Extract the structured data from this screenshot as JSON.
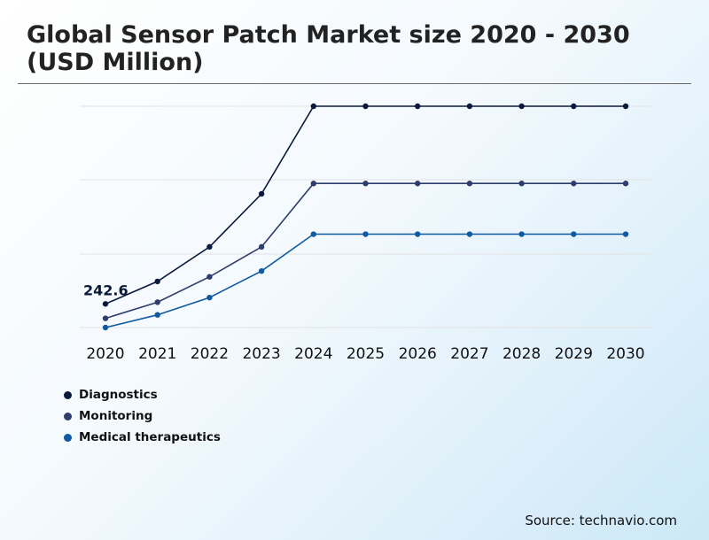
{
  "title": "Global Sensor Patch Market size 2020 - 2030 (USD Million)",
  "source": "Source: technavio.com",
  "colors": {
    "diagnostics": "#0a1a3a",
    "monitoring": "#2e3d6b",
    "medical": "#0f5aa0",
    "grid": "#e2e2e2"
  },
  "chart_data": {
    "type": "line",
    "title": "Global Sensor Patch Market size 2020 - 2030 (USD Million)",
    "xlabel": "",
    "ylabel": "",
    "x": [
      "2020",
      "2021",
      "2022",
      "2023",
      "2024",
      "2025",
      "2026",
      "2027",
      "2028",
      "2029",
      "2030"
    ],
    "ylim": [
      140,
      1100
    ],
    "grid": true,
    "legend": "bottom-left",
    "series": [
      {
        "name": "Diagnostics",
        "values": [
          242.6,
          340,
          490,
          720,
          1100,
          1100,
          1100,
          1100,
          1100,
          1100,
          1100
        ]
      },
      {
        "name": "Monitoring",
        "values": [
          180,
          250,
          360,
          490,
          765,
          765,
          765,
          765,
          765,
          765,
          765
        ]
      },
      {
        "name": "Medical therapeutics",
        "values": [
          140,
          195,
          270,
          385,
          545,
          545,
          545,
          545,
          545,
          545,
          545
        ]
      }
    ],
    "annotations": [
      {
        "series": "Diagnostics",
        "x": "2020",
        "label": "242.6"
      }
    ]
  }
}
